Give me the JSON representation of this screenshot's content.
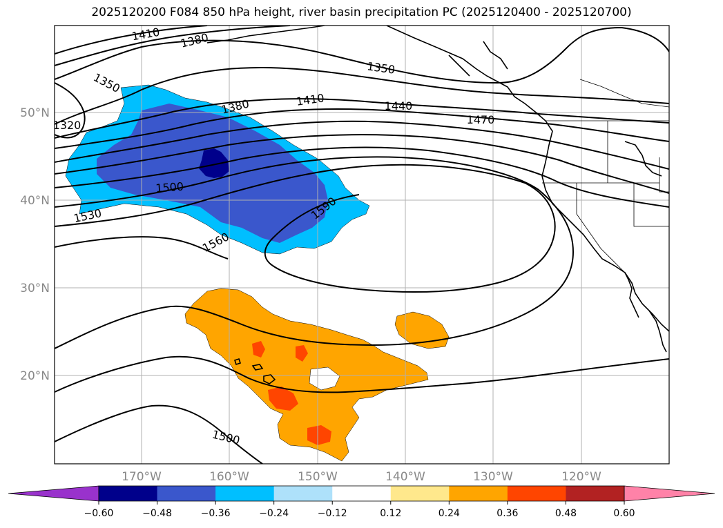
{
  "title": "2025120200 F084 850 hPa height, river basin precipitation PC (2025120400 - 2025120700)",
  "map": {
    "lon_labels": [
      "170°W",
      "160°W",
      "150°W",
      "140°W",
      "130°W",
      "120°W"
    ],
    "lat_labels": [
      "50°N",
      "40°N",
      "30°N",
      "20°N"
    ],
    "contour_labels": [
      "1410",
      "1380",
      "1350",
      "1350",
      "1320",
      "1380",
      "1410",
      "1440",
      "1470",
      "1500",
      "1530",
      "1560",
      "1590",
      "1500"
    ]
  },
  "colorbar": {
    "colors": [
      "#9932cc",
      "#00008b",
      "#3a57cc",
      "#00bfff",
      "#aee1fa",
      "#ffffff",
      "#ffe88c",
      "#ffa500",
      "#ff4500",
      "#b22222",
      "#ff82a8"
    ],
    "ticks": [
      "−0.60",
      "−0.48",
      "−0.36",
      "−0.24",
      "−0.12",
      "0.12",
      "0.24",
      "0.36",
      "0.48",
      "0.60"
    ]
  }
}
